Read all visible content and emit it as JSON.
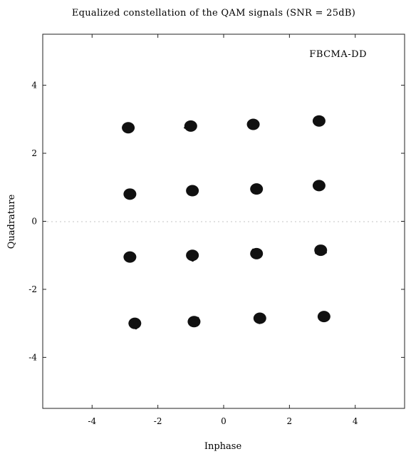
{
  "chart_data": {
    "type": "scatter",
    "title": "Equalized constellation of the QAM signals (SNR = 25dB)",
    "xlabel": "Inphase",
    "ylabel": "Quadrature",
    "legend": "FBCMA-DD",
    "legend_placement": "top-right",
    "xlim": [
      -5.5,
      5.5
    ],
    "ylim": [
      -5.5,
      5.5
    ],
    "xticks": [
      -4,
      -2,
      0,
      2,
      4
    ],
    "yticks": [
      -4,
      -2,
      0,
      2,
      4
    ],
    "grid": false,
    "series": [
      {
        "marker": "dense dot clusters",
        "color": "#111111",
        "points": [
          {
            "x": -2.9,
            "y": 2.75
          },
          {
            "x": -1.0,
            "y": 2.8
          },
          {
            "x": 0.9,
            "y": 2.85
          },
          {
            "x": 2.9,
            "y": 2.95
          },
          {
            "x": -2.85,
            "y": 0.8
          },
          {
            "x": -0.95,
            "y": 0.9
          },
          {
            "x": 1.0,
            "y": 0.95
          },
          {
            "x": 2.9,
            "y": 1.05
          },
          {
            "x": -2.85,
            "y": -1.05
          },
          {
            "x": -0.95,
            "y": -1.0
          },
          {
            "x": 1.0,
            "y": -0.95
          },
          {
            "x": 2.95,
            "y": -0.85
          },
          {
            "x": -2.7,
            "y": -3.0
          },
          {
            "x": -0.9,
            "y": -2.95
          },
          {
            "x": 1.1,
            "y": -2.85
          },
          {
            "x": 3.05,
            "y": -2.8
          }
        ]
      }
    ]
  }
}
